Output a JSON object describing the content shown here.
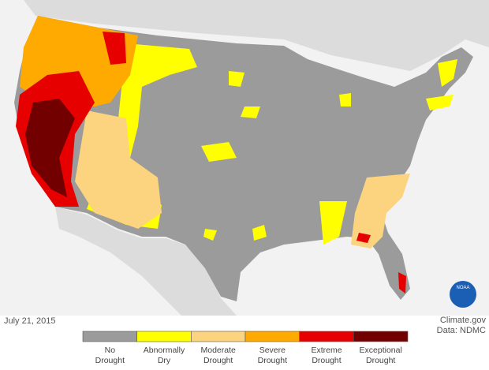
{
  "map": {
    "date": "July 21, 2015",
    "credit": "Climate.gov",
    "source": "Data: NDMC",
    "logo": "NOAA"
  },
  "legend": {
    "items": [
      {
        "label": [
          "No",
          "Drought"
        ],
        "color": "#9b9b9b"
      },
      {
        "label": [
          "Abnormally",
          "Dry"
        ],
        "color": "#ffff00"
      },
      {
        "label": [
          "Moderate",
          "Drought"
        ],
        "color": "#fcd37f"
      },
      {
        "label": [
          "Severe",
          "Drought"
        ],
        "color": "#ffaa00"
      },
      {
        "label": [
          "Extreme",
          "Drought"
        ],
        "color": "#e60000"
      },
      {
        "label": [
          "Exceptional",
          "Drought"
        ],
        "color": "#730000"
      }
    ]
  }
}
